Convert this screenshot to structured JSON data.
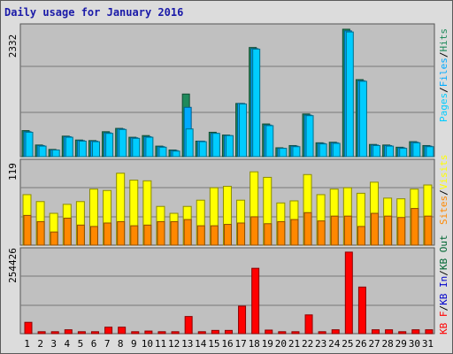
{
  "title": "Daily usage for January 2016",
  "colors": {
    "hits": "#1f8a5c",
    "files": "#00aaff",
    "pages": "#00ccff",
    "visits": "#ffff00",
    "sites": "#ff8800",
    "kb_f": "#ff0000",
    "kb_in": "#0000cc",
    "kb_out": "#006633",
    "weekend_day": "#008800",
    "panel_bg": "#c0c0c0"
  },
  "day_label_colors": [
    "weekday",
    "weekday",
    "weekend",
    "weekend",
    "weekday",
    "weekday",
    "weekday",
    "weekday",
    "weekend",
    "weekend",
    "weekday",
    "weekday",
    "weekday",
    "weekday",
    "weekday",
    "weekend",
    "weekend",
    "weekday",
    "weekday",
    "weekday",
    "weekday",
    "weekday",
    "weekend",
    "weekend",
    "weekday",
    "weekday",
    "weekday",
    "weekday",
    "weekday",
    "weekend",
    "weekend"
  ],
  "chart_data": [
    {
      "type": "bar",
      "panel": "hits_files_pages",
      "y_max_label": "2332",
      "ylim": [
        0,
        2332
      ],
      "categories": [
        "1",
        "2",
        "3",
        "4",
        "5",
        "6",
        "7",
        "8",
        "9",
        "10",
        "11",
        "12",
        "13",
        "14",
        "15",
        "16",
        "17",
        "18",
        "19",
        "20",
        "21",
        "22",
        "23",
        "24",
        "25",
        "26",
        "27",
        "28",
        "29",
        "30",
        "31"
      ],
      "series": [
        {
          "name": "Hits",
          "values": [
            470,
            210,
            130,
            370,
            300,
            290,
            450,
            510,
            350,
            380,
            190,
            120,
            1130,
            280,
            440,
            390,
            960,
            1970,
            590,
            160,
            200,
            770,
            250,
            260,
            2300,
            1390,
            220,
            210,
            170,
            270,
            200
          ]
        },
        {
          "name": "Files",
          "values": [
            450,
            200,
            120,
            360,
            290,
            280,
            430,
            500,
            340,
            360,
            180,
            110,
            890,
            280,
            420,
            380,
            960,
            1950,
            570,
            150,
            190,
            750,
            240,
            250,
            2270,
            1370,
            210,
            200,
            160,
            260,
            190
          ]
        },
        {
          "name": "Pages",
          "values": [
            440,
            190,
            120,
            350,
            280,
            270,
            420,
            490,
            330,
            350,
            170,
            100,
            500,
            270,
            420,
            380,
            950,
            1940,
            560,
            150,
            180,
            740,
            230,
            240,
            2250,
            1360,
            200,
            190,
            150,
            250,
            180
          ]
        }
      ],
      "legend": [
        "Pages",
        "Files",
        "Hits"
      ]
    },
    {
      "type": "bar",
      "panel": "visits_sites",
      "y_max_label": "119",
      "ylim": [
        0,
        119
      ],
      "categories": [
        "1",
        "2",
        "3",
        "4",
        "5",
        "6",
        "7",
        "8",
        "9",
        "10",
        "11",
        "12",
        "13",
        "14",
        "15",
        "16",
        "17",
        "18",
        "19",
        "20",
        "21",
        "22",
        "23",
        "24",
        "25",
        "26",
        "27",
        "28",
        "29",
        "30",
        "31"
      ],
      "series": [
        {
          "name": "Visits",
          "values": [
            73,
            63,
            46,
            59,
            63,
            81,
            79,
            104,
            94,
            93,
            56,
            46,
            56,
            65,
            83,
            85,
            65,
            106,
            98,
            61,
            64,
            102,
            73,
            81,
            83,
            75,
            91,
            68,
            67,
            81,
            87
          ]
        },
        {
          "name": "Sites",
          "values": [
            43,
            34,
            19,
            39,
            29,
            27,
            32,
            34,
            28,
            29,
            34,
            34,
            37,
            28,
            28,
            30,
            32,
            41,
            31,
            34,
            37,
            47,
            35,
            42,
            42,
            27,
            46,
            42,
            40,
            53,
            42
          ]
        }
      ],
      "legend": [
        "Sites",
        "Visits"
      ]
    },
    {
      "type": "bar",
      "panel": "kbytes",
      "y_max_label": "254426",
      "ylim": [
        0,
        254426
      ],
      "categories": [
        "1",
        "2",
        "3",
        "4",
        "5",
        "6",
        "7",
        "8",
        "9",
        "10",
        "11",
        "12",
        "13",
        "14",
        "15",
        "16",
        "17",
        "18",
        "19",
        "20",
        "21",
        "22",
        "23",
        "24",
        "25",
        "26",
        "27",
        "28",
        "29",
        "30",
        "31"
      ],
      "series": [
        {
          "name": "KB F",
          "values": [
            35000,
            6000,
            6000,
            12000,
            6000,
            6000,
            20000,
            20000,
            6000,
            8000,
            6000,
            6000,
            53000,
            6000,
            10000,
            10000,
            85000,
            202000,
            11000,
            6000,
            6000,
            58000,
            6000,
            12000,
            252000,
            144000,
            12000,
            12000,
            6000,
            12000,
            12000
          ]
        }
      ],
      "legend": [
        "KB F",
        "KB In",
        "KB Out"
      ]
    }
  ]
}
